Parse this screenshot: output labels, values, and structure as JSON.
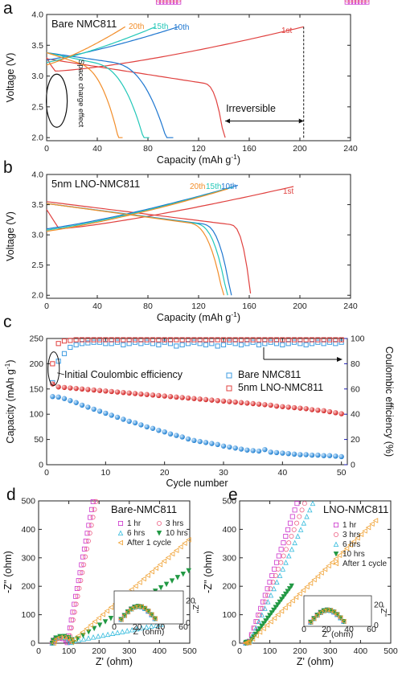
{
  "chart_data": [
    {
      "panel": "a",
      "type": "line",
      "title": "Bare NMC811",
      "xlabel": "Capacity (mAh g⁻¹)",
      "ylabel": "Voltage (V)",
      "xlim": [
        0,
        240
      ],
      "ylim": [
        1.95,
        4.0
      ],
      "xticks": [
        0,
        40,
        80,
        120,
        160,
        200,
        240
      ],
      "yticks": [
        2.0,
        2.5,
        3.0,
        3.5,
        4.0
      ],
      "series": [
        {
          "name": "1st",
          "color": "#e0413f",
          "charge_cap": 203,
          "discharge_cap": 141
        },
        {
          "name": "10th",
          "color": "#1f77d0",
          "charge_cap": 104,
          "discharge_cap": 100
        },
        {
          "name": "15th",
          "color": "#22c7b8",
          "charge_cap": 86,
          "discharge_cap": 81
        },
        {
          "name": "20th",
          "color": "#f28e2b",
          "charge_cap": 62,
          "discharge_cap": 60
        }
      ],
      "annotations": {
        "space_charge": "Space charge effect",
        "irreversible": "Irreversible"
      }
    },
    {
      "panel": "b",
      "type": "line",
      "title": "5nm LNO-NMC811",
      "xlabel": "Capacity (mAh g⁻¹)",
      "ylabel": "Voltage (V)",
      "xlim": [
        0,
        240
      ],
      "ylim": [
        1.95,
        4.0
      ],
      "xticks": [
        0,
        40,
        80,
        120,
        160,
        200,
        240
      ],
      "yticks": [
        2.0,
        2.5,
        3.0,
        3.5,
        4.0
      ],
      "series": [
        {
          "name": "1st",
          "color": "#e0413f",
          "charge_cap": 195,
          "discharge_cap": 161
        },
        {
          "name": "10th",
          "color": "#1f77d0",
          "charge_cap": 151,
          "discharge_cap": 146
        },
        {
          "name": "15th",
          "color": "#22c7b8",
          "charge_cap": 147,
          "discharge_cap": 143
        },
        {
          "name": "20th",
          "color": "#f28e2b",
          "charge_cap": 143,
          "discharge_cap": 140
        }
      ]
    },
    {
      "panel": "c",
      "type": "scatter",
      "xlabel": "Cycle number",
      "ylabel": "Capacity (mAh g⁻¹)",
      "y2label": "Coulombic efficiency (%)",
      "xlim": [
        0,
        51
      ],
      "ylim": [
        0,
        250
      ],
      "y2lim": [
        0,
        100
      ],
      "xticks": [
        0,
        10,
        20,
        30,
        40,
        50
      ],
      "yticks": [
        0,
        50,
        100,
        150,
        200,
        250
      ],
      "y2ticks": [
        0,
        20,
        40,
        60,
        80,
        100
      ],
      "annotation": "Initial Coulombic efficiency",
      "legend": [
        {
          "label": "Bare NMC811",
          "color": "#3d9be0"
        },
        {
          "label": "5nm LNO-NMC811",
          "color": "#e0413f"
        }
      ],
      "bare_capacity": [
        135,
        134,
        131,
        127,
        123,
        118,
        114,
        110,
        106,
        102,
        98,
        94,
        90,
        86,
        83,
        79,
        75,
        72,
        68,
        65,
        61,
        58,
        55,
        51,
        48,
        46,
        44,
        42,
        40,
        37,
        35,
        33,
        31,
        29,
        28,
        27,
        30,
        25,
        24,
        23,
        22,
        21,
        20,
        20,
        19,
        19,
        18,
        18,
        17,
        16
      ],
      "lno_capacity": [
        160,
        154,
        153,
        152,
        151,
        150,
        149,
        148,
        147,
        146,
        145,
        144,
        143,
        142,
        141,
        140,
        139,
        138,
        137,
        136,
        135,
        134,
        133,
        132,
        131,
        130,
        129,
        128,
        127,
        126,
        125,
        124,
        123,
        122,
        121,
        120,
        119,
        118,
        116,
        115,
        114,
        113,
        112,
        111,
        109,
        108,
        107,
        105,
        103,
        101
      ],
      "bare_ce": [
        65,
        82,
        88,
        93,
        95,
        96,
        96.5,
        97,
        97,
        96,
        96,
        97,
        95,
        96,
        97,
        96,
        97,
        96,
        95,
        97,
        96,
        94,
        95,
        96,
        97,
        96,
        95,
        96,
        94,
        95,
        97,
        96,
        95,
        96,
        97,
        95,
        96,
        97,
        96,
        95,
        96,
        97,
        96,
        95,
        96,
        97,
        96,
        97,
        96,
        97
      ],
      "lno_ce": [
        80,
        96,
        98,
        98.5,
        99,
        99,
        99,
        99,
        99,
        99,
        99,
        99,
        99,
        99,
        99,
        99,
        99,
        99,
        99,
        99,
        99,
        99,
        99,
        99,
        99,
        99,
        99,
        99,
        99,
        99,
        99,
        99,
        99,
        99,
        99,
        99,
        99,
        99,
        99,
        99,
        99,
        99,
        99,
        99,
        99,
        99,
        99,
        99,
        99,
        99
      ]
    },
    {
      "panel": "d",
      "type": "scatter",
      "title": "Bare-NMC811",
      "xlabel": "Z' (ohm)",
      "ylabel": "-Z'' (ohm)",
      "xlim": [
        0,
        500
      ],
      "ylim": [
        0,
        500
      ],
      "xticks": [
        0,
        100,
        200,
        300,
        400,
        500
      ],
      "yticks": [
        0,
        100,
        200,
        300,
        400,
        500
      ],
      "series": [
        {
          "name": "1 hr",
          "color": "#cc33cc",
          "marker": "square"
        },
        {
          "name": "3 hrs",
          "color": "#ee6688",
          "marker": "circle"
        },
        {
          "name": "6 hrs",
          "color": "#33bbdd",
          "marker": "triangle"
        },
        {
          "name": "10 hrs",
          "color": "#229944",
          "marker": "triangle-down"
        },
        {
          "name": "After 1 cycle",
          "color": "#f0a030",
          "marker": "triangle-left"
        }
      ]
    },
    {
      "panel": "e",
      "type": "scatter",
      "title": "LNO-NMC811",
      "xlabel": "Z' (ohm)",
      "ylabel": "-Z'' (ohm)",
      "xlim": [
        0,
        500
      ],
      "ylim": [
        0,
        500
      ],
      "xticks": [
        0,
        100,
        200,
        300,
        400,
        500
      ],
      "yticks": [
        0,
        100,
        200,
        300,
        400,
        500
      ],
      "series": [
        {
          "name": "1 hr",
          "color": "#cc33cc",
          "marker": "square"
        },
        {
          "name": "3 hrs",
          "color": "#ee6688",
          "marker": "circle"
        },
        {
          "name": "6 hrs",
          "color": "#33bbdd",
          "marker": "triangle"
        },
        {
          "name": "10 hrs",
          "color": "#229944",
          "marker": "triangle-down"
        },
        {
          "name": "After 1 cycle",
          "color": "#f0a030",
          "marker": "triangle-left"
        }
      ]
    }
  ],
  "panel_letters": [
    "a",
    "b",
    "c",
    "d",
    "e"
  ],
  "inset_axes": {
    "xlabel": "Z' (ohm)",
    "ylabel": "-Z''",
    "xticks": [
      "0",
      "20",
      "40",
      "60"
    ],
    "yticks": [
      "0",
      "20"
    ]
  }
}
